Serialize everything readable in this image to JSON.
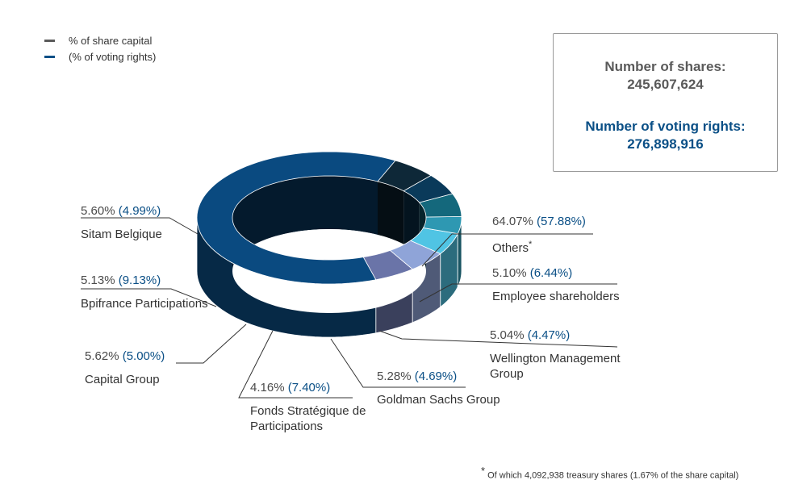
{
  "legend": {
    "share_label": "% of share capital",
    "voting_label": "(% of voting rights)",
    "share_color": "#5a5a5a",
    "voting_color": "#0a4f86"
  },
  "info": {
    "shares_label": "Number of shares:",
    "shares_value": "245,607,624",
    "voting_label": "Number of voting rights:",
    "voting_value": "276,898,916"
  },
  "footnote": {
    "marker": "*",
    "text": "Of which 4,092,938 treasury shares (1.67% of the share capital)"
  },
  "chart_data": {
    "type": "pie",
    "style": "3d-donut",
    "series": [
      {
        "name": "% of share capital"
      },
      {
        "name": "% of voting rights"
      }
    ],
    "slices": [
      {
        "label": "Others",
        "suffix": "*",
        "share_capital": 64.07,
        "voting_rights": 57.88,
        "share_text": "64.07%",
        "voting_text": "(57.88%)",
        "color": "#0a4a80"
      },
      {
        "label": "Employee shareholders",
        "share_capital": 5.1,
        "voting_rights": 6.44,
        "share_text": "5.10%",
        "voting_text": "(6.44%)",
        "color": "#6a74a8"
      },
      {
        "label": "Wellington Management Group",
        "share_capital": 5.04,
        "voting_rights": 4.47,
        "share_text": "5.04%",
        "voting_text": "(4.47%)",
        "color": "#8fa4d8"
      },
      {
        "label": "Goldman Sachs Group",
        "share_capital": 5.28,
        "voting_rights": 4.69,
        "share_text": "5.28%",
        "voting_text": "(4.69%)",
        "color": "#50c4e4"
      },
      {
        "label": "Fonds Stratégique de Participations",
        "share_capital": 4.16,
        "voting_rights": 7.4,
        "share_text": "4.16%",
        "voting_text": "(7.40%)",
        "color": "#2e98b2"
      },
      {
        "label": "Capital Group",
        "share_capital": 5.62,
        "voting_rights": 5.0,
        "share_text": "5.62%",
        "voting_text": "(5.00%)",
        "color": "#14687c"
      },
      {
        "label": "Bpifrance Participations",
        "share_capital": 5.13,
        "voting_rights": 9.13,
        "share_text": "5.13%",
        "voting_text": "(9.13%)",
        "color": "#0a3a5a"
      },
      {
        "label": "Sitam Belgique",
        "share_capital": 5.6,
        "voting_rights": 4.99,
        "share_text": "5.60%",
        "voting_text": "(4.99%)",
        "color": "#0e2838"
      }
    ]
  }
}
